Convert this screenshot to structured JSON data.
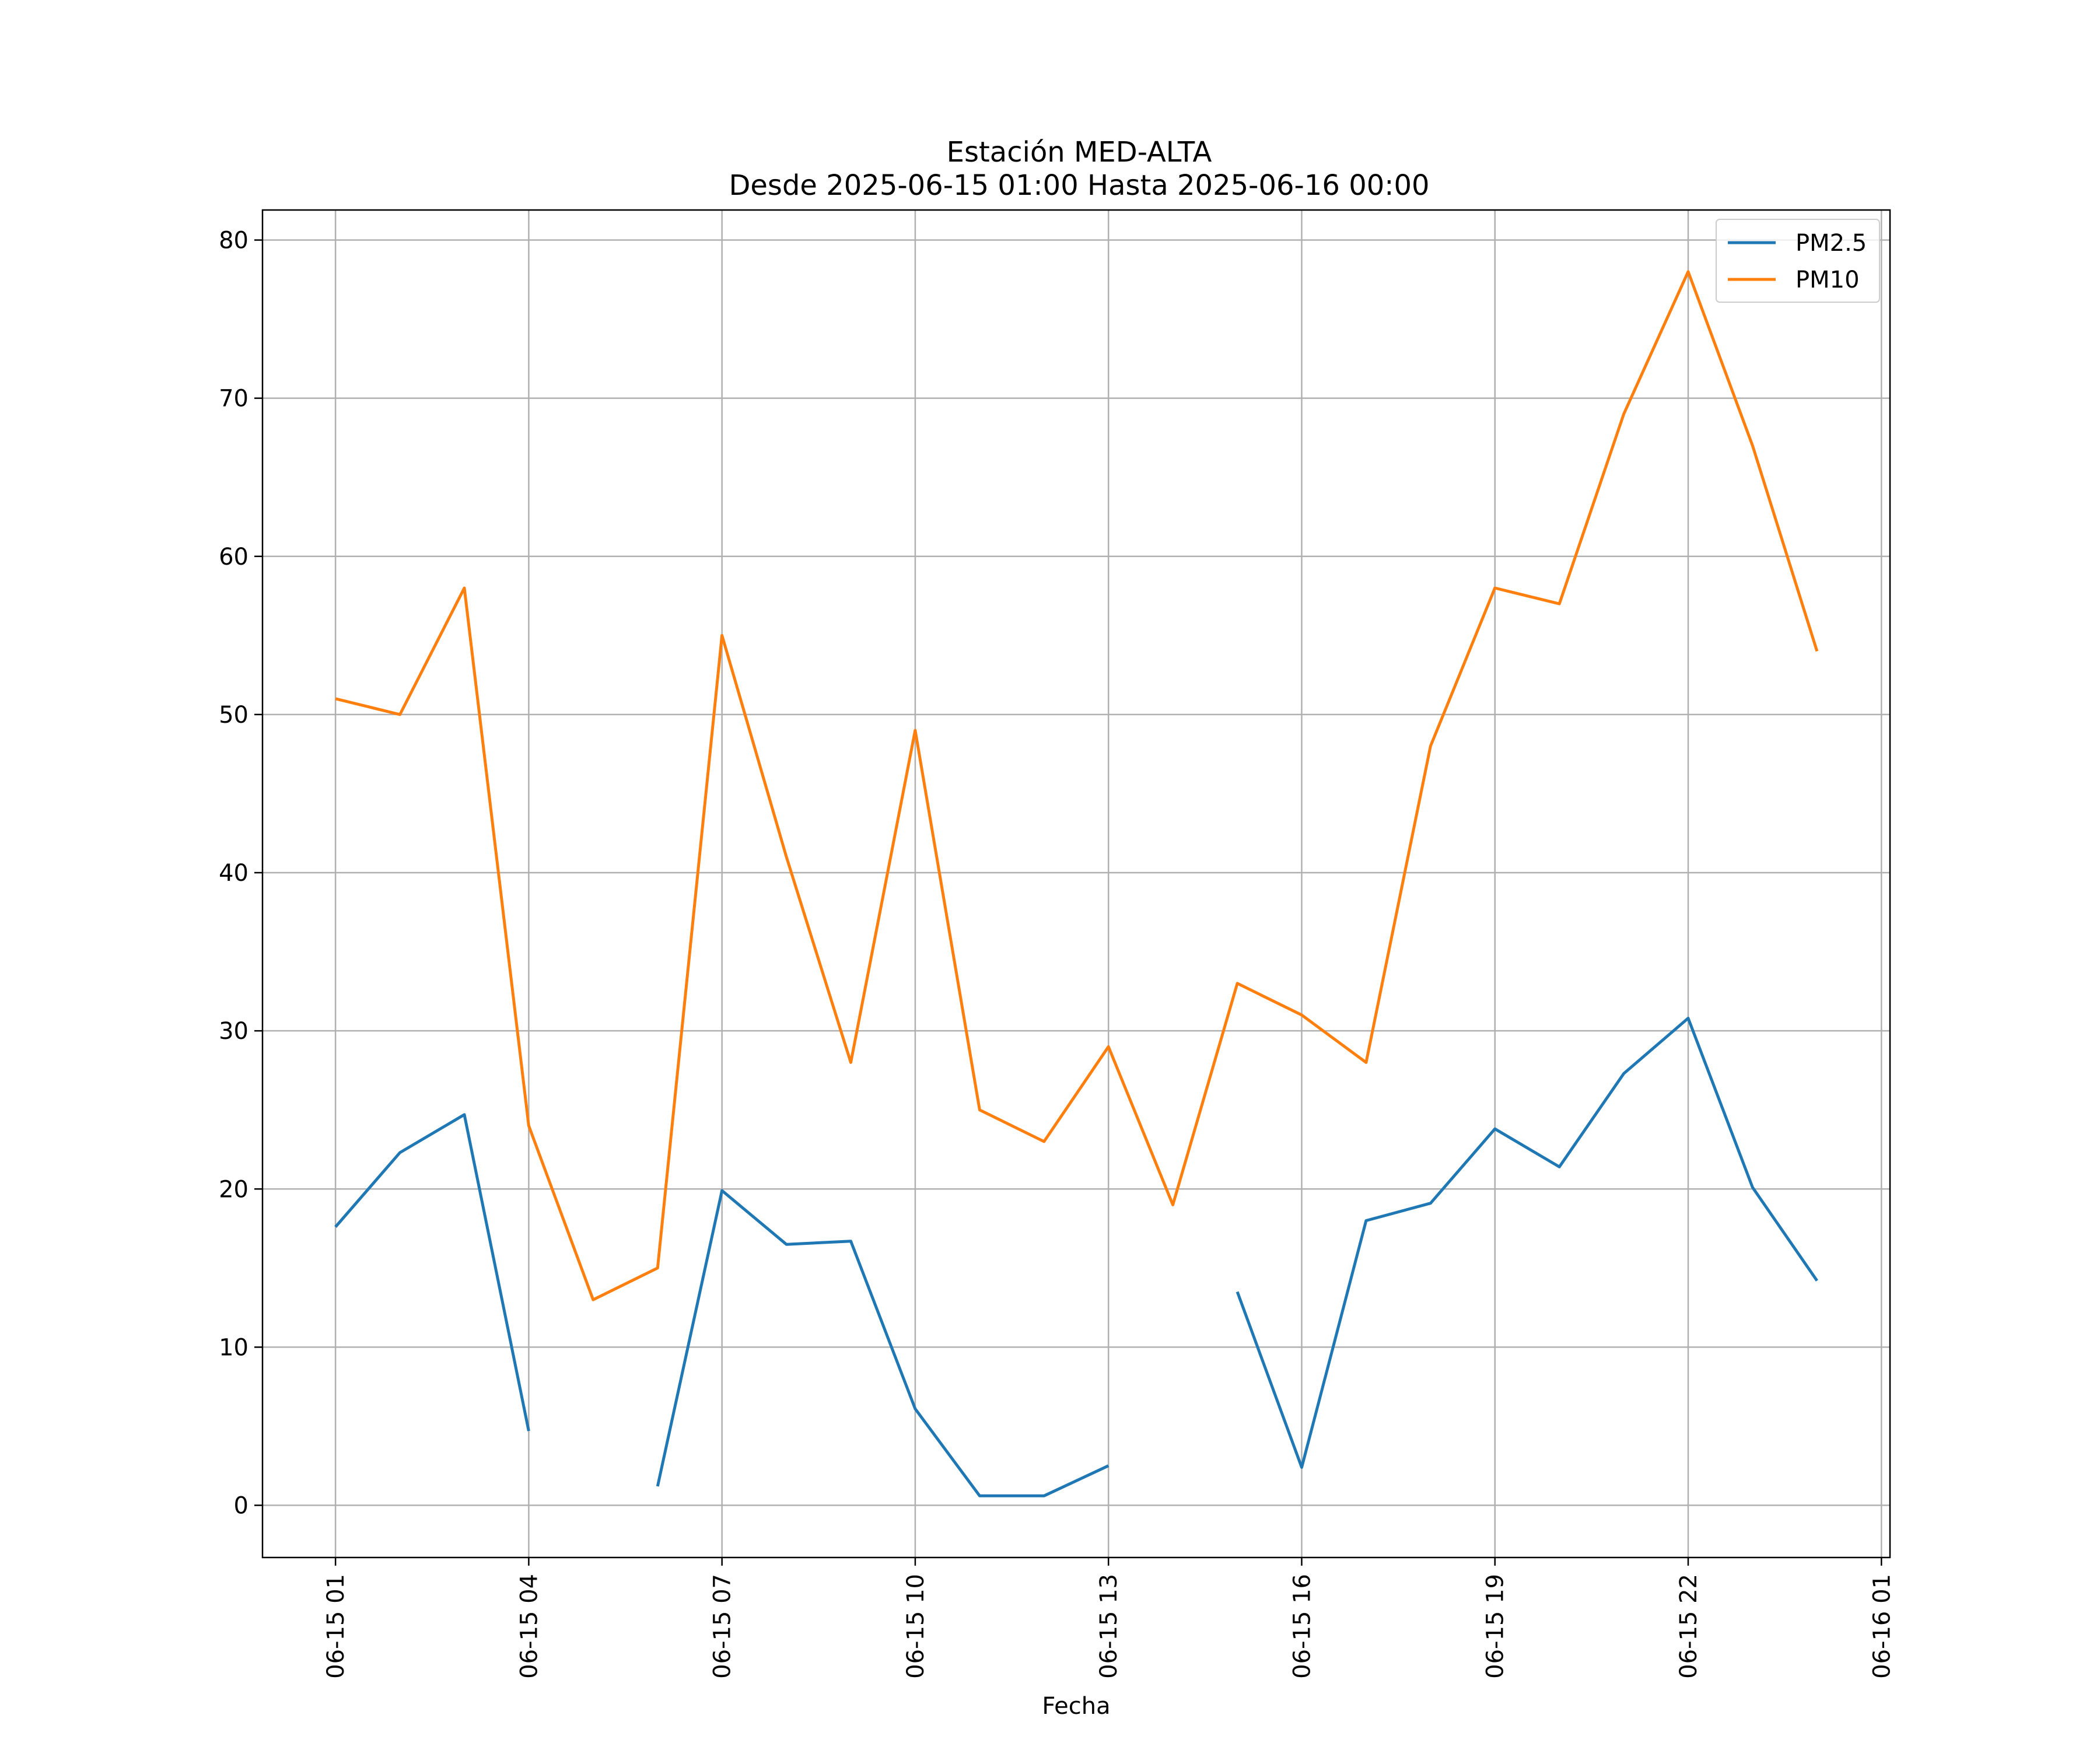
{
  "chart_data": {
    "type": "line",
    "title": "Estación MED-ALTA",
    "subtitle": "Desde 2025-06-15 01:00 Hasta 2025-06-16 00:00",
    "xlabel": "Fecha",
    "ylabel": "",
    "x": [
      "06-15 01",
      "06-15 02",
      "06-15 03",
      "06-15 04",
      "06-15 05",
      "06-15 06",
      "06-15 07",
      "06-15 08",
      "06-15 09",
      "06-15 10",
      "06-15 11",
      "06-15 12",
      "06-15 13",
      "06-15 14",
      "06-15 15",
      "06-15 16",
      "06-15 17",
      "06-15 18",
      "06-15 19",
      "06-15 20",
      "06-15 21",
      "06-15 22",
      "06-15 23",
      "06-16 00"
    ],
    "series": [
      {
        "name": "PM2.5",
        "color": "#1f77b4",
        "values": [
          17.6,
          22.3,
          24.7,
          4.7,
          null,
          1.2,
          19.9,
          16.5,
          16.7,
          6.1,
          0.6,
          0.6,
          2.5,
          null,
          13.5,
          2.4,
          18.0,
          19.1,
          23.8,
          21.4,
          27.3,
          30.8,
          20.1,
          14.2
        ]
      },
      {
        "name": "PM10",
        "color": "#ff7f0e",
        "values": [
          51,
          50,
          58,
          24,
          13,
          15,
          55,
          41,
          28,
          49,
          25,
          23,
          29,
          19,
          33,
          31,
          28,
          48,
          58,
          57,
          69,
          78,
          67,
          54
        ]
      }
    ],
    "x_tick_labels": [
      "06-15 01",
      "06-15 04",
      "06-15 07",
      "06-15 10",
      "06-15 13",
      "06-15 16",
      "06-15 19",
      "06-15 22",
      "06-16 01"
    ],
    "x_tick_positions": [
      "06-15 01",
      "06-15 04",
      "06-15 07",
      "06-15 10",
      "06-15 13",
      "06-15 16",
      "06-15 19",
      "06-15 22",
      "06-16 01"
    ],
    "y_ticks": [
      0,
      10,
      20,
      30,
      40,
      50,
      60,
      70,
      80
    ],
    "y_tick_labels": [
      "0",
      "10",
      "20",
      "30",
      "40",
      "50",
      "60",
      "70",
      "80"
    ],
    "ylim": [
      -3.3,
      81.9
    ],
    "xlim": [
      "06-14 23:52",
      "06-16 01:08"
    ],
    "grid": true,
    "legend_position": "top-right"
  }
}
